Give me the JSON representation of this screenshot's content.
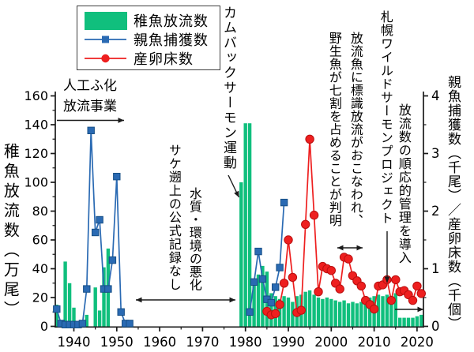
{
  "legend": {
    "items": [
      {
        "label": "稚魚放流数",
        "marker": "bar-swatch-icon"
      },
      {
        "label": "親魚捕獲数",
        "marker": "line-square-icon"
      },
      {
        "label": "産卵床数",
        "marker": "line-circle-icon"
      }
    ]
  },
  "annotations": {
    "hatchery_program": {
      "lines": [
        "人工ふ化",
        "放流事業"
      ]
    },
    "comeback_salmon": {
      "text": "カムバックサーモン運動"
    },
    "no_official_record": {
      "text": "サケ遡上の公式記録なし"
    },
    "water_quality": {
      "text": "水質・環境の悪化"
    },
    "tagging": {
      "lines": [
        "放流魚に標識放流がおこなわれ、",
        "野生魚が七割を占めることが判明"
      ]
    },
    "sapporo_wild_salmon_project": {
      "text": "札幌ワイルドサーモンプロジェクト"
    },
    "adaptive_management": {
      "text": "放流数の順応的管理を導入"
    }
  },
  "colors": {
    "bar_green": "#10bf7d",
    "line_blue": "#2a6ab3",
    "line_blue_dark": "#174f86",
    "line_red": "#ee1f1f",
    "line_red_dark": "#b90f0f",
    "axis_black": "#1a1a1a"
  },
  "chart_data": {
    "type": "bar+line",
    "title": "",
    "x_axis": {
      "range": [
        1935.5,
        2022
      ],
      "major_ticks": [
        1940,
        1950,
        1960,
        1970,
        1980,
        1990,
        2000,
        2010,
        2020
      ],
      "minor_ticks": [
        1945,
        1955,
        1965,
        1975,
        1985,
        1995,
        2005,
        2015
      ]
    },
    "left_axis": {
      "label": "稚魚放流数（万尾）",
      "unit": "万尾",
      "range": [
        0,
        160
      ],
      "major_tick_interval": 20,
      "minor_tick_interval": 10
    },
    "right_axis": {
      "label": "親魚捕獲数（千尾）／産卵床数（千個）",
      "unit": "千尾 / 千個",
      "range": [
        0,
        4
      ],
      "major_tick_interval": 1,
      "minor_tick_interval": 0.5
    },
    "series": [
      {
        "name": "稚魚放流数",
        "type": "bar",
        "axis": "left",
        "unit": "万尾",
        "color": "#10bf7d",
        "points": [
          [
            1936,
            15
          ],
          [
            1937,
            2
          ],
          [
            1938,
            45
          ],
          [
            1939,
            30
          ],
          [
            1940,
            13
          ],
          [
            1941,
            2
          ],
          [
            1942,
            2
          ],
          [
            1943,
            8
          ],
          [
            1945,
            27
          ],
          [
            1946,
            11
          ],
          [
            1947,
            41
          ],
          [
            1948,
            54
          ],
          [
            1979,
            100
          ],
          [
            1980,
            141
          ],
          [
            1981,
            141
          ],
          [
            1982,
            33
          ],
          [
            1983,
            36
          ],
          [
            1984,
            42
          ],
          [
            1985,
            38
          ],
          [
            1986,
            23
          ],
          [
            1987,
            21
          ],
          [
            1988,
            19
          ],
          [
            1989,
            21
          ],
          [
            1990,
            20
          ],
          [
            1991,
            17
          ],
          [
            1992,
            21
          ],
          [
            1993,
            22
          ],
          [
            1994,
            24
          ],
          [
            1995,
            25
          ],
          [
            1996,
            22
          ],
          [
            1997,
            20
          ],
          [
            1998,
            19
          ],
          [
            1999,
            20
          ],
          [
            2000,
            19
          ],
          [
            2001,
            18
          ],
          [
            2002,
            17
          ],
          [
            2003,
            18
          ],
          [
            2004,
            16
          ],
          [
            2005,
            17
          ],
          [
            2006,
            16
          ],
          [
            2007,
            17
          ],
          [
            2008,
            18
          ],
          [
            2009,
            20
          ],
          [
            2010,
            21
          ],
          [
            2011,
            22
          ],
          [
            2012,
            21
          ],
          [
            2013,
            22
          ],
          [
            2014,
            21
          ],
          [
            2015,
            23
          ],
          [
            2016,
            6
          ],
          [
            2017,
            6
          ],
          [
            2018,
            6
          ],
          [
            2019,
            6
          ],
          [
            2020,
            7
          ],
          [
            2021,
            8
          ]
        ]
      },
      {
        "name": "親魚捕獲数",
        "type": "line",
        "marker": "square",
        "axis": "right",
        "unit": "千尾",
        "color": "#2a6ab3",
        "segments": [
          [
            [
              1936,
              0.3
            ],
            [
              1937,
              0.05
            ],
            [
              1938,
              0.03
            ],
            [
              1939,
              0.03
            ],
            [
              1940,
              0.03
            ],
            [
              1941,
              0.03
            ],
            [
              1942,
              0.05
            ],
            [
              1943,
              0.65
            ],
            [
              1944,
              3.4
            ],
            [
              1945,
              1.63
            ],
            [
              1946,
              1.85
            ],
            [
              1947,
              0.65
            ],
            [
              1948,
              0.65
            ],
            [
              1949,
              1.15
            ],
            [
              1950,
              2.6
            ],
            [
              1951,
              0.25
            ],
            [
              1952,
              0.05
            ],
            [
              1953,
              0.05
            ]
          ],
          [
            [
              1981,
              0.25
            ],
            [
              1982,
              0.77
            ],
            [
              1983,
              1.3
            ],
            [
              1984,
              0.82
            ],
            [
              1985,
              0.47
            ],
            [
              1986,
              0.41
            ],
            [
              1987,
              0.68
            ],
            [
              1988,
              1.02
            ],
            [
              1989,
              2.15
            ]
          ]
        ]
      },
      {
        "name": "産卵床数",
        "type": "line",
        "marker": "circle",
        "axis": "right",
        "unit": "千個",
        "color": "#ee1f1f",
        "points": [
          [
            1985,
            0.26
          ],
          [
            1986,
            0.2
          ],
          [
            1987,
            0.22
          ],
          [
            1988,
            0.38
          ],
          [
            1989,
            0.75
          ],
          [
            1990,
            1.5
          ],
          [
            1991,
            0.85
          ],
          [
            1992,
            0.24
          ],
          [
            1993,
            0.28
          ],
          [
            1994,
            1.77
          ],
          [
            1995,
            3.25
          ],
          [
            1996,
            1.93
          ],
          [
            1997,
            0.6
          ],
          [
            1998,
            1.04
          ],
          [
            1999,
            1.0
          ],
          [
            2000,
            0.97
          ],
          [
            2001,
            0.75
          ],
          [
            2002,
            0.65
          ],
          [
            2003,
            1.2
          ],
          [
            2004,
            1.17
          ],
          [
            2005,
            0.88
          ],
          [
            2006,
            0.79
          ],
          [
            2007,
            0.7
          ],
          [
            2008,
            0.45
          ],
          [
            2009,
            0.38
          ],
          [
            2010,
            0.3
          ],
          [
            2011,
            0.7
          ],
          [
            2012,
            0.72
          ],
          [
            2013,
            0.81
          ],
          [
            2014,
            0.45
          ],
          [
            2015,
            0.81
          ],
          [
            2016,
            0.6
          ],
          [
            2017,
            0.62
          ],
          [
            2018,
            0.55
          ],
          [
            2019,
            0.45
          ],
          [
            2020,
            0.7
          ],
          [
            2021,
            0.57
          ]
        ]
      }
    ]
  }
}
